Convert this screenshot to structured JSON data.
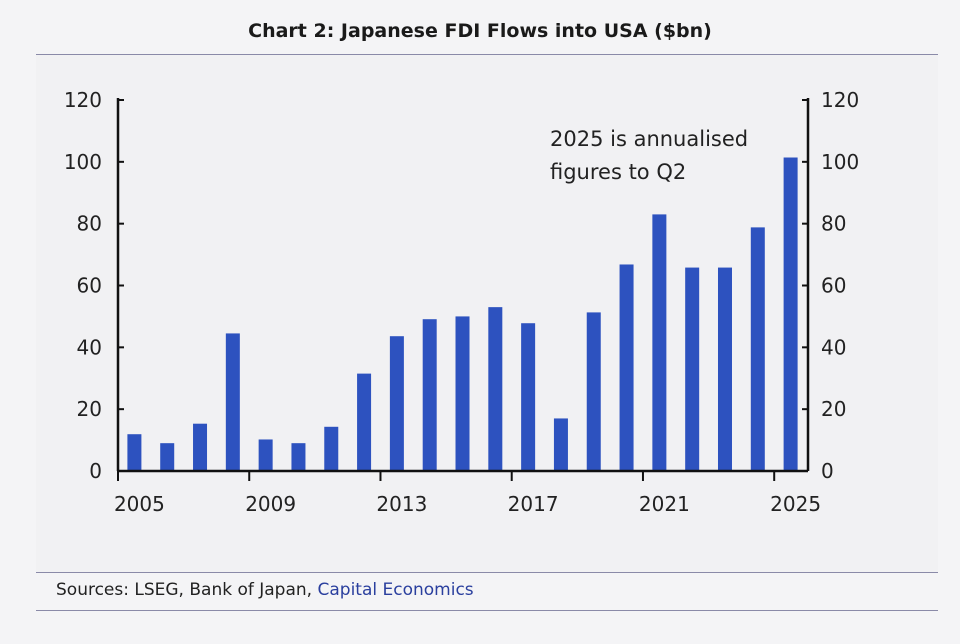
{
  "chart_data": {
    "type": "bar",
    "title": "Chart 2: Japanese FDI Flows into USA ($bn)",
    "categories": [
      "2005",
      "2006",
      "2007",
      "2008",
      "2009",
      "2010",
      "2011",
      "2012",
      "2013",
      "2014",
      "2015",
      "2016",
      "2017",
      "2018",
      "2019",
      "2020",
      "2021",
      "2022",
      "2023",
      "2024",
      "2025"
    ],
    "values": [
      11.9,
      9.0,
      15.3,
      44.5,
      10.2,
      9.0,
      14.3,
      31.5,
      43.6,
      49.1,
      50.0,
      53.0,
      47.8,
      17.0,
      51.3,
      66.8,
      83.0,
      65.8,
      65.8,
      78.8,
      101.4
    ],
    "x_tick_labels": [
      "2005",
      "2009",
      "2013",
      "2017",
      "2021",
      "2025"
    ],
    "y_ticks": [
      0,
      20,
      40,
      60,
      80,
      100,
      120
    ],
    "ylim": [
      0,
      120
    ],
    "left_axis": true,
    "right_axis": true,
    "grid": false,
    "bar_color": "#2d52bf",
    "annotation": [
      "2025 is annualised",
      "figures to Q2"
    ]
  },
  "footer": {
    "sources_prefix": "Sources: LSEG, Bank of Japan, ",
    "sources_link": "Capital Economics"
  }
}
